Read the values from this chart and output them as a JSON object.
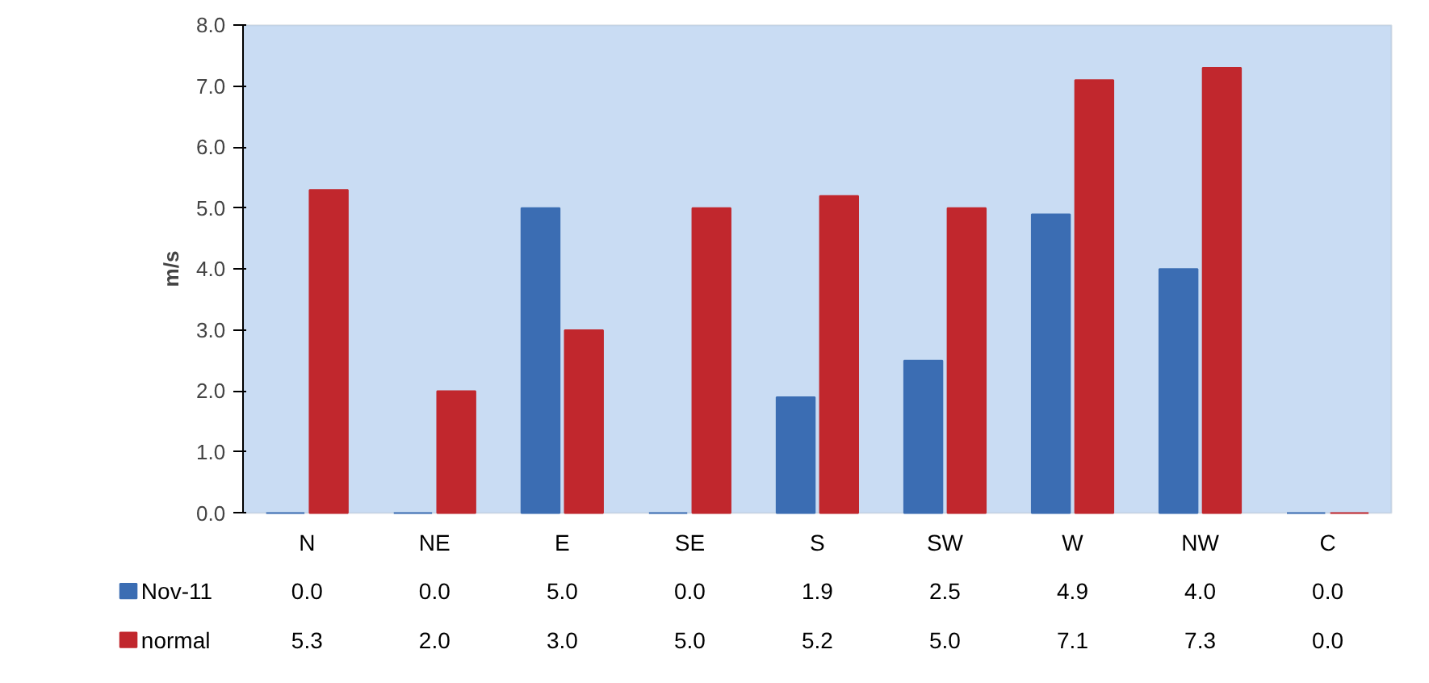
{
  "chart_data": {
    "type": "bar",
    "ylabel": "m/s",
    "categories": [
      "N",
      "NE",
      "E",
      "SE",
      "S",
      "SW",
      "W",
      "NW",
      "C"
    ],
    "series": [
      {
        "name": "Nov-11",
        "color": "#3b6db3",
        "values": [
          0.0,
          0.0,
          5.0,
          0.0,
          1.9,
          2.5,
          4.9,
          4.0,
          0.0
        ],
        "value_labels": [
          "0.0",
          "0.0",
          "5.0",
          "0.0",
          "1.9",
          "2.5",
          "4.9",
          "4.0",
          "0.0"
        ]
      },
      {
        "name": "normal",
        "color": "#c1272d",
        "values": [
          5.3,
          2.0,
          3.0,
          5.0,
          5.2,
          5.0,
          7.1,
          7.3,
          0.0
        ],
        "value_labels": [
          "5.3",
          "2.0",
          "3.0",
          "5.0",
          "5.2",
          "5.0",
          "7.1",
          "7.3",
          "0.0"
        ]
      }
    ],
    "ylim": [
      0,
      8
    ],
    "yticks": [
      {
        "value": 0,
        "label": "0.0"
      },
      {
        "value": 1,
        "label": "1.0"
      },
      {
        "value": 2,
        "label": "2.0"
      },
      {
        "value": 3,
        "label": "3.0"
      },
      {
        "value": 4,
        "label": "4.0"
      },
      {
        "value": 5,
        "label": "5.0"
      },
      {
        "value": 6,
        "label": "6.0"
      },
      {
        "value": 7,
        "label": "7.0"
      },
      {
        "value": 8,
        "label": "8.0"
      }
    ],
    "grid": false,
    "legend": "bottom left"
  }
}
